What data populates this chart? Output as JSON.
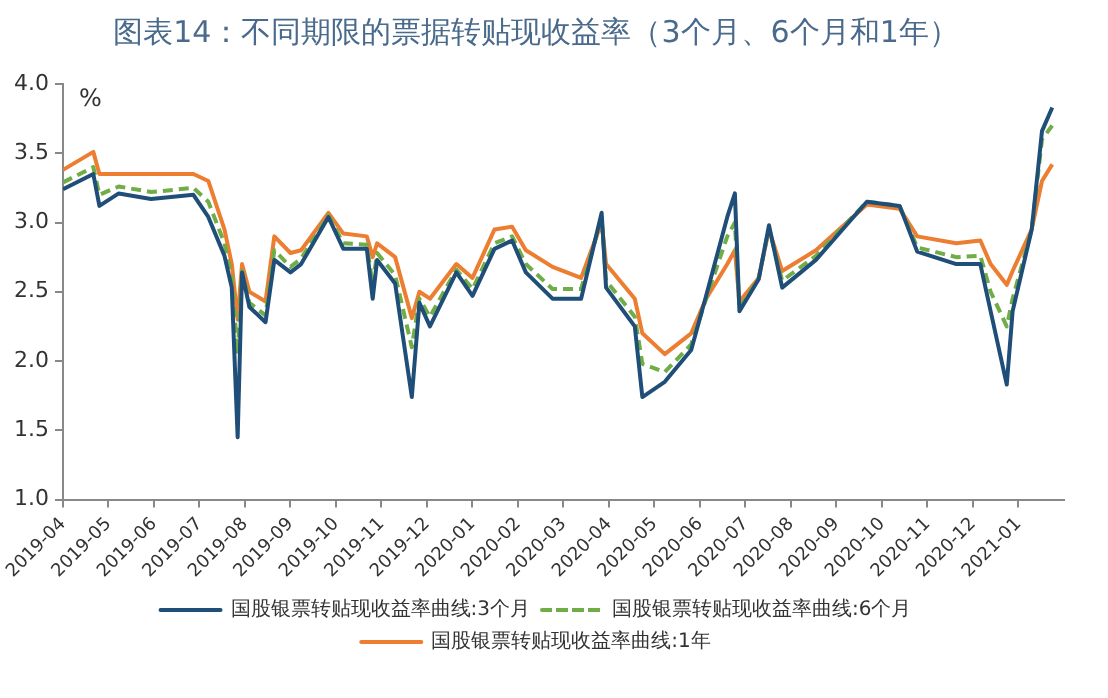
{
  "chart_data": {
    "type": "line",
    "title": "图表14：不同期限的票据转贴现收益率（3个月、6个月和1年）",
    "ylabel": "%",
    "x": [
      "2019-04-01",
      "2019-04-21",
      "2019-04-25",
      "2019-05-08",
      "2019-05-30",
      "2019-06-27",
      "2019-07-07",
      "2019-07-18",
      "2019-07-23",
      "2019-07-27",
      "2019-07-30",
      "2019-08-04",
      "2019-08-15",
      "2019-08-21",
      "2019-09-01",
      "2019-09-08",
      "2019-09-26",
      "2019-10-06",
      "2019-10-22",
      "2019-10-26",
      "2019-10-29",
      "2019-11-10",
      "2019-11-21",
      "2019-11-26",
      "2019-12-03",
      "2019-12-21",
      "2020-01-01",
      "2020-01-16",
      "2020-01-28",
      "2020-02-06",
      "2020-02-23",
      "2020-03-13",
      "2020-03-27",
      "2020-03-30",
      "2020-04-18",
      "2020-04-23",
      "2020-05-08",
      "2020-05-26",
      "2020-06-05",
      "2020-06-19",
      "2020-06-24",
      "2020-06-27",
      "2020-07-10",
      "2020-07-17",
      "2020-07-26",
      "2020-08-18",
      "2020-09-21",
      "2020-10-13",
      "2020-10-25",
      "2020-11-20",
      "2020-12-06",
      "2020-12-13",
      "2020-12-24",
      "2020-12-28",
      "2021-01-10",
      "2021-01-17",
      "2021-01-24"
    ],
    "series": [
      {
        "name": "国股银票转贴现收益率曲线:3个月",
        "color": "#1f4e79",
        "line_style": "solid",
        "values": [
          3.24,
          3.35,
          3.12,
          3.21,
          3.17,
          3.2,
          3.04,
          2.76,
          2.53,
          1.45,
          2.64,
          2.39,
          2.28,
          2.73,
          2.64,
          2.7,
          3.04,
          2.81,
          2.81,
          2.45,
          2.73,
          2.56,
          1.74,
          2.42,
          2.25,
          2.64,
          2.47,
          2.81,
          2.87,
          2.64,
          2.45,
          2.45,
          3.07,
          2.53,
          2.25,
          1.74,
          1.85,
          2.08,
          2.47,
          3.04,
          3.21,
          2.36,
          2.59,
          2.98,
          2.53,
          2.73,
          3.15,
          3.12,
          2.79,
          2.7,
          2.7,
          2.36,
          1.83,
          2.36,
          2.95,
          3.66,
          3.83
        ]
      },
      {
        "name": "国股银票转贴现收益率曲线:6个月",
        "color": "#70ad47",
        "line_style": "dashed",
        "values": [
          3.29,
          3.4,
          3.2,
          3.26,
          3.22,
          3.25,
          3.15,
          2.85,
          2.6,
          2.05,
          2.65,
          2.42,
          2.33,
          2.8,
          2.68,
          2.74,
          3.05,
          2.85,
          2.84,
          2.55,
          2.78,
          2.62,
          2.1,
          2.45,
          2.32,
          2.66,
          2.52,
          2.85,
          2.9,
          2.7,
          2.52,
          2.52,
          3.03,
          2.58,
          2.32,
          1.98,
          1.92,
          2.12,
          2.45,
          2.9,
          3.0,
          2.38,
          2.6,
          2.96,
          2.58,
          2.76,
          3.15,
          3.12,
          2.82,
          2.75,
          2.76,
          2.5,
          2.25,
          2.45,
          2.95,
          3.6,
          3.7
        ]
      },
      {
        "name": "国股银票转贴现收益率曲线:1年",
        "color": "#ed7d31",
        "line_style": "solid",
        "values": [
          3.38,
          3.51,
          3.35,
          3.35,
          3.35,
          3.35,
          3.3,
          2.95,
          2.7,
          2.3,
          2.7,
          2.5,
          2.43,
          2.9,
          2.78,
          2.8,
          3.07,
          2.92,
          2.9,
          2.75,
          2.85,
          2.75,
          2.31,
          2.5,
          2.45,
          2.7,
          2.6,
          2.95,
          2.97,
          2.8,
          2.68,
          2.6,
          3.0,
          2.7,
          2.45,
          2.2,
          2.05,
          2.2,
          2.45,
          2.7,
          2.8,
          2.43,
          2.6,
          2.95,
          2.65,
          2.8,
          3.13,
          3.1,
          2.9,
          2.85,
          2.87,
          2.7,
          2.55,
          2.65,
          2.95,
          3.3,
          3.42
        ]
      }
    ],
    "xlim": [
      "2019-04-01",
      "2021-02-01"
    ],
    "xticks": [
      "2019-04",
      "2019-05",
      "2019-06",
      "2019-07",
      "2019-08",
      "2019-09",
      "2019-10",
      "2019-11",
      "2019-12",
      "2020-01",
      "2020-02",
      "2020-03",
      "2020-04",
      "2020-05",
      "2020-06",
      "2020-07",
      "2020-08",
      "2020-09",
      "2020-10",
      "2020-11",
      "2020-12",
      "2021-01"
    ],
    "ylim": [
      1,
      4
    ],
    "yticks": [
      {
        "value": 1,
        "label": "1.0"
      },
      {
        "value": 1.5,
        "label": "1.5"
      },
      {
        "value": 2,
        "label": "2.0"
      },
      {
        "value": 2.5,
        "label": "2.5"
      },
      {
        "value": 3,
        "label": "3.0"
      },
      {
        "value": 3.5,
        "label": "3.5"
      },
      {
        "value": 4,
        "label": "4.0"
      }
    ],
    "grid": false,
    "legend": "bottom",
    "marker": "none"
  }
}
